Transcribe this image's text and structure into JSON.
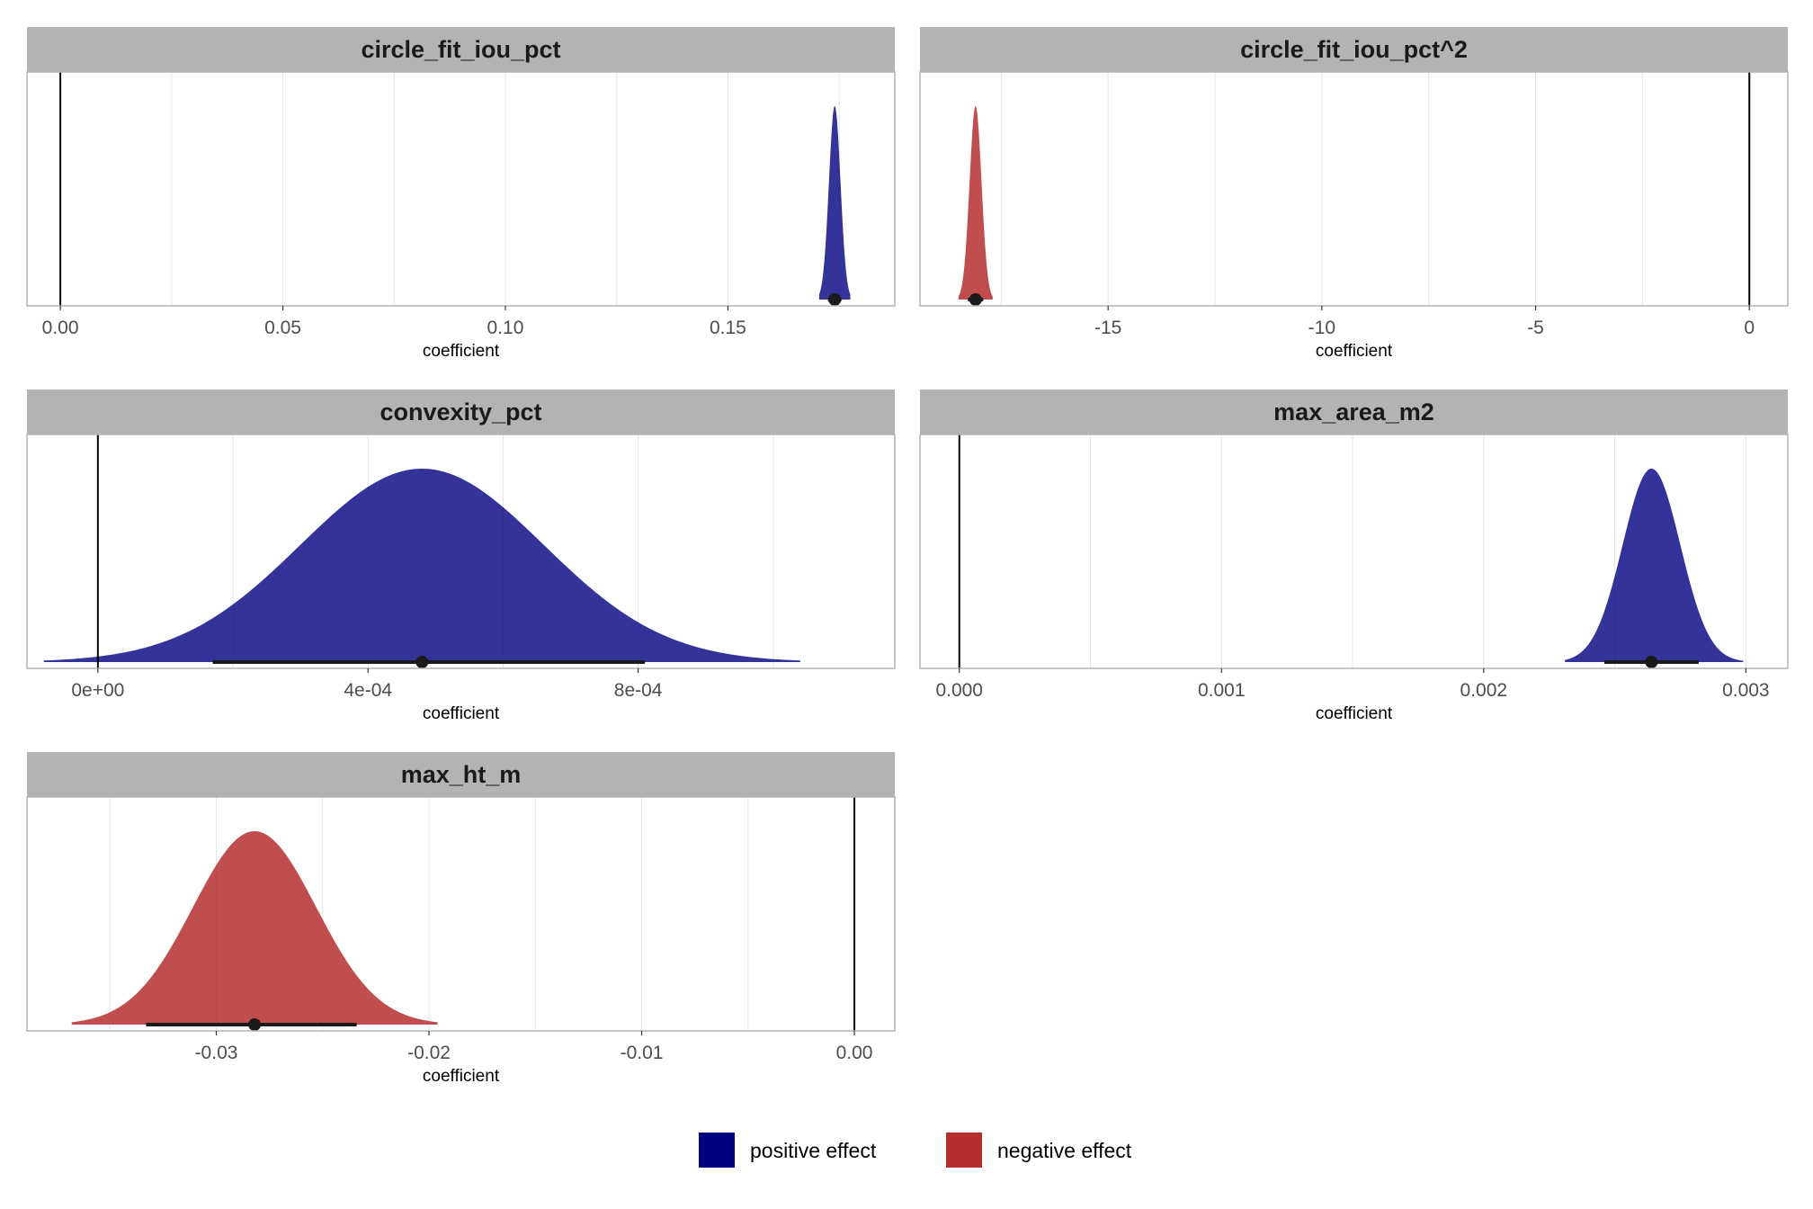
{
  "colors": {
    "positive": "#000080",
    "negative": "#b22222",
    "strip_bg": "#b3b3b3",
    "panel_border": "#b3b3b3",
    "grid": "#e5e5e5"
  },
  "legend": {
    "position": "bottom",
    "items": [
      {
        "key": "positive",
        "label": "positive effect"
      },
      {
        "key": "negative",
        "label": "negative effect"
      }
    ]
  },
  "chart_data": [
    {
      "type": "area",
      "title": "circle_fit_iou_pct",
      "xlabel": "coefficient",
      "xlim": [
        -0.0075,
        0.1875
      ],
      "ticks": [
        0.0,
        0.05,
        0.1,
        0.15
      ],
      "tick_labels": [
        "0.00",
        "0.05",
        "0.10",
        "0.15"
      ],
      "effect": "positive",
      "density": {
        "mean": 0.174,
        "sd": 0.0013,
        "range": [
          0.1705,
          0.1775
        ]
      },
      "point_estimate": 0.174,
      "interval": [
        0.1725,
        0.1755
      ],
      "reference_line": 0
    },
    {
      "type": "area",
      "title": "circle_fit_iou_pct^2",
      "xlabel": "coefficient",
      "xlim": [
        -19.4,
        0.9
      ],
      "ticks": [
        -15,
        -10,
        -5,
        0
      ],
      "tick_labels": [
        "-15",
        "-10",
        "-5",
        "0"
      ],
      "effect": "negative",
      "density": {
        "mean": -18.1,
        "sd": 0.14,
        "range": [
          -18.5,
          -17.7
        ]
      },
      "point_estimate": -18.1,
      "interval": [
        -18.28,
        -17.92
      ],
      "reference_line": 0
    },
    {
      "type": "area",
      "title": "convexity_pct",
      "xlabel": "coefficient",
      "xlim": [
        -0.000105,
        0.00118
      ],
      "ticks": [
        0.0,
        0.0004,
        0.0008
      ],
      "tick_labels": [
        "0e+00",
        "4e-04",
        "8e-04"
      ],
      "effect": "positive",
      "density": {
        "mean": 0.00048,
        "sd": 0.00018,
        "range": [
          -8e-05,
          0.00104
        ]
      },
      "point_estimate": 0.00048,
      "interval": [
        0.00017,
        0.00081
      ],
      "reference_line": 0
    },
    {
      "type": "area",
      "title": "max_area_m2",
      "xlabel": "coefficient",
      "xlim": [
        -0.00015,
        0.00316
      ],
      "ticks": [
        0.0,
        0.001,
        0.002,
        0.003
      ],
      "tick_labels": [
        "0.000",
        "0.001",
        "0.002",
        "0.003"
      ],
      "effect": "positive",
      "density": {
        "mean": 0.00264,
        "sd": 0.00011,
        "range": [
          0.00231,
          0.00299
        ]
      },
      "point_estimate": 0.00264,
      "interval": [
        0.00246,
        0.00282
      ],
      "reference_line": 0
    },
    {
      "type": "area",
      "title": "max_ht_m",
      "xlabel": "coefficient",
      "xlim": [
        -0.0389,
        0.0019
      ],
      "ticks": [
        -0.03,
        -0.02,
        -0.01,
        0.0
      ],
      "tick_labels": [
        "-0.03",
        "-0.02",
        "-0.01",
        "0.00"
      ],
      "effect": "negative",
      "density": {
        "mean": -0.0282,
        "sd": 0.0029,
        "range": [
          -0.0368,
          -0.0196
        ]
      },
      "point_estimate": -0.0282,
      "interval": [
        -0.0333,
        -0.0234
      ],
      "reference_line": 0
    }
  ]
}
